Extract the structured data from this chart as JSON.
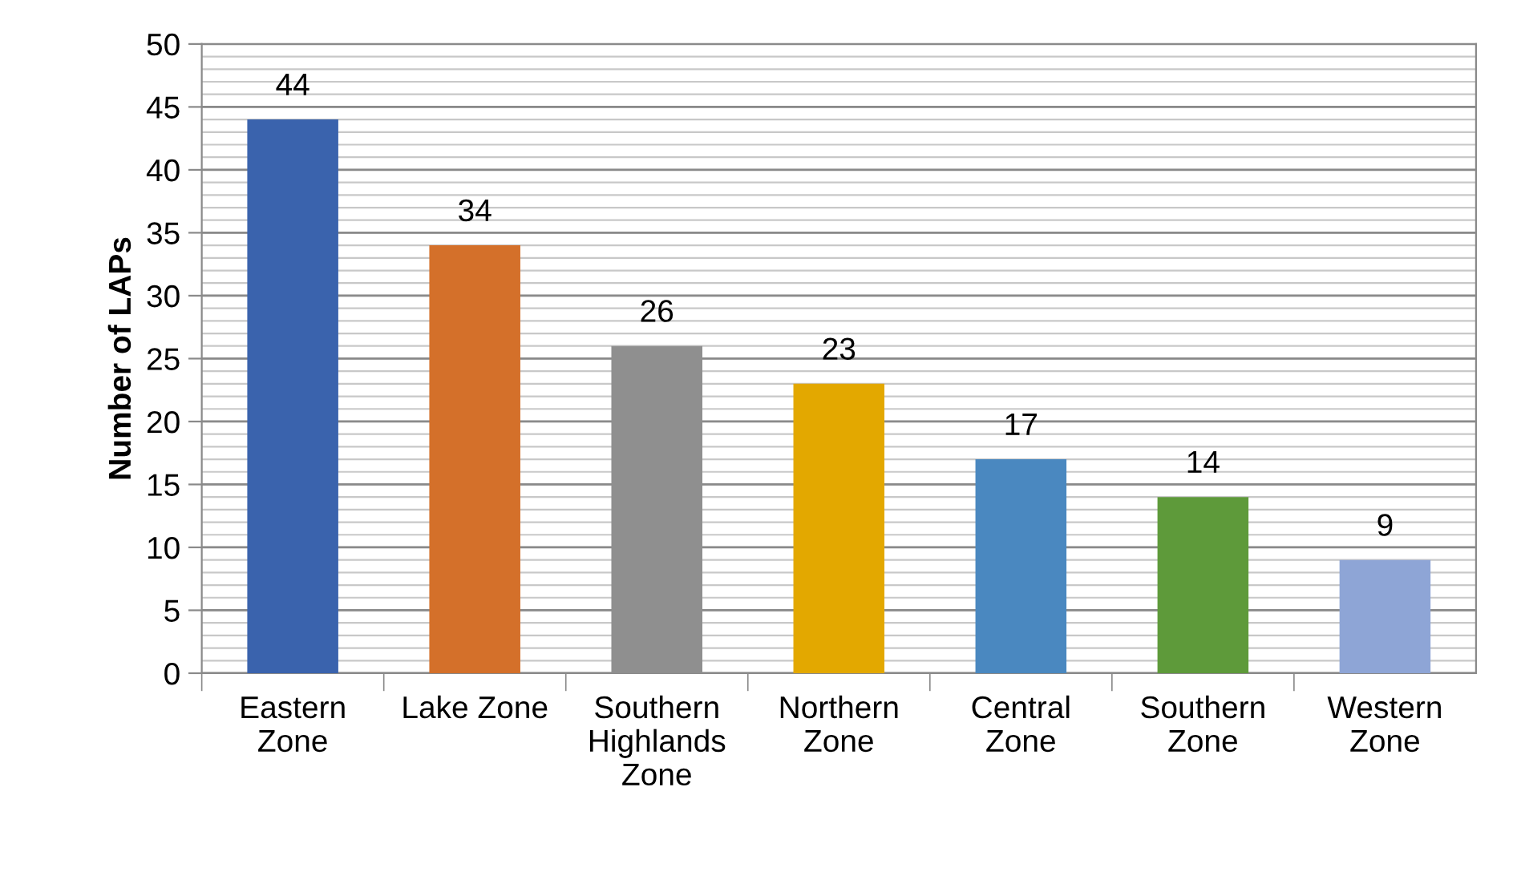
{
  "chart_data": {
    "type": "bar",
    "ylabel": "Number of LAPs",
    "categories": [
      "Eastern Zone",
      "Lake Zone",
      "Southern Highlands Zone",
      "Northern Zone",
      "Central Zone",
      "Southern Zone",
      "Western Zone"
    ],
    "values": [
      44,
      34,
      26,
      23,
      17,
      14,
      9
    ],
    "colors": [
      "#3a63ad",
      "#d4702a",
      "#8f8f8f",
      "#e3a800",
      "#4a88c0",
      "#5e9a3a",
      "#8ea5d6"
    ],
    "ylim": [
      0,
      50
    ],
    "yticks": [
      0,
      5,
      10,
      15,
      20,
      25,
      30,
      35,
      40,
      45,
      50
    ],
    "grid": "y",
    "data_labels": true,
    "legend": false
  }
}
